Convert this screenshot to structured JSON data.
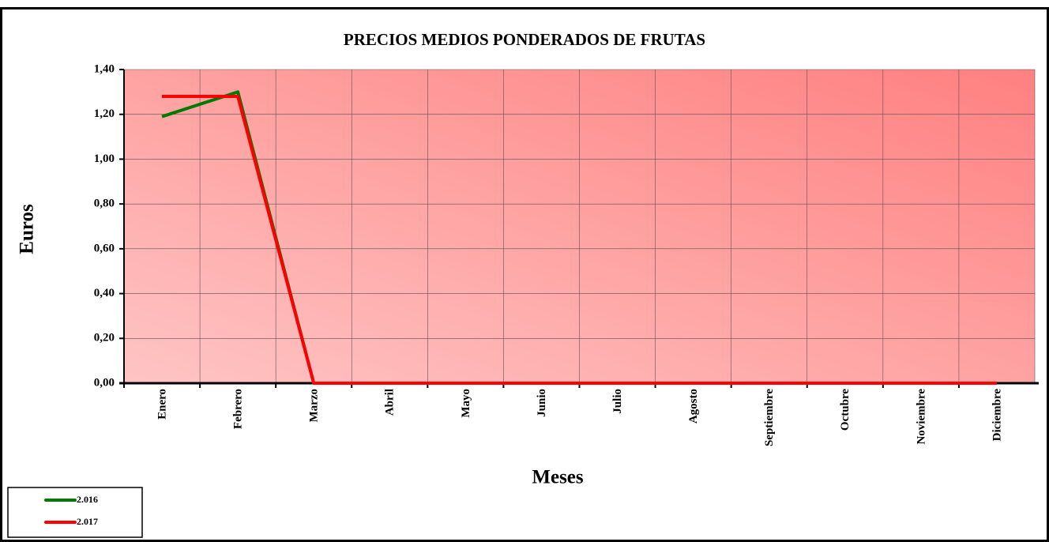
{
  "chart_data": {
    "type": "line",
    "title": "PRECIOS MEDIOS PONDERADOS DE FRUTAS",
    "x_label": "Meses",
    "y_label": "Euros",
    "categories": [
      "Enero",
      "Febrero",
      "Marzo",
      "Abril",
      "Mayo",
      "Junio",
      "Julio",
      "Agosto",
      "Septiembre",
      "Octubre",
      "Noviembre",
      "Diciembre"
    ],
    "series": [
      {
        "name": "2.016",
        "color": "#007a00",
        "values": [
          1.19,
          1.3,
          0,
          0,
          0,
          0,
          0,
          0,
          0,
          0,
          0,
          0
        ]
      },
      {
        "name": "2.017",
        "color": "#ff0000",
        "values": [
          1.28,
          1.28,
          0,
          0,
          0,
          0,
          0,
          0,
          0,
          0,
          0,
          0
        ]
      }
    ],
    "ylim": [
      0,
      1.4
    ],
    "yticks": [
      {
        "value": 0,
        "label": "0,00"
      },
      {
        "value": 0.2,
        "label": "0,20"
      },
      {
        "value": 0.4,
        "label": "0,40"
      },
      {
        "value": 0.6,
        "label": "0,60"
      },
      {
        "value": 0.8,
        "label": "0,80"
      },
      {
        "value": 1.0,
        "label": "1,00"
      },
      {
        "value": 1.2,
        "label": "1,20"
      },
      {
        "value": 1.4,
        "label": "1,40"
      }
    ],
    "grid": true,
    "legend": "bottom-left"
  }
}
